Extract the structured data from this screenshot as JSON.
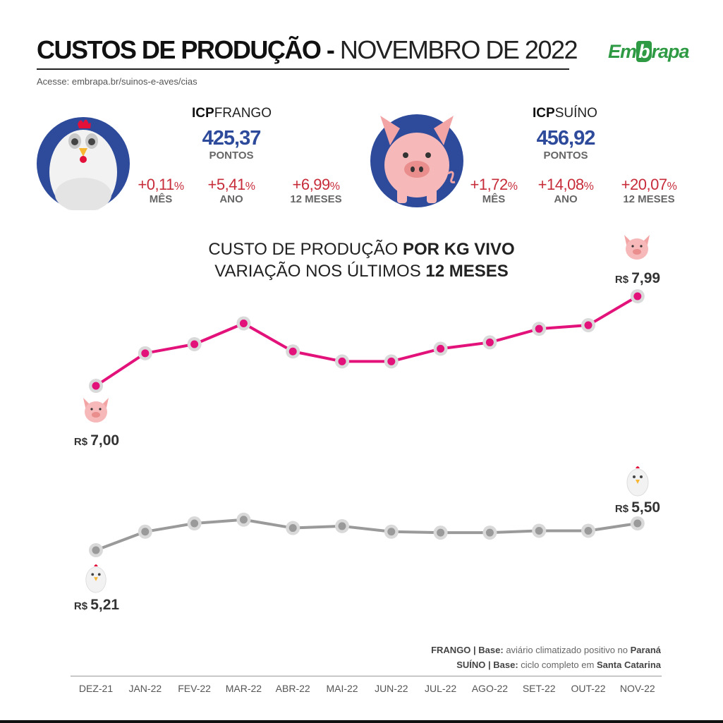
{
  "header": {
    "title_bold": "CUSTOS DE PRODUÇÃO -",
    "title_light": "NOVEMBRO DE 2022",
    "access": "Acesse: embrapa.br/suinos-e-aves/cias",
    "logo": {
      "part1": "Em",
      "part2": "b",
      "part3": "rapa"
    }
  },
  "colors": {
    "pig_line": "#e3117a",
    "chicken_line": "#9a9a9a",
    "icp_blue": "#2d4a9b",
    "pct_red": "#c72c3a"
  },
  "icp": {
    "frango": {
      "label_bold": "ICP",
      "label": "FRANGO",
      "icon": "chicken-icon",
      "value": "425,37",
      "unit": "PONTOS",
      "changes": [
        {
          "value": "+0,11",
          "sym": "%",
          "label": "MÊS"
        },
        {
          "value": "+5,41",
          "sym": "%",
          "label": "ANO"
        },
        {
          "value": "+6,99",
          "sym": "%",
          "label": "12 MESES"
        }
      ]
    },
    "suino": {
      "label_bold": "ICP",
      "label": "SUÍNO",
      "icon": "pig-icon",
      "value": "456,92",
      "unit": "PONTOS",
      "changes": [
        {
          "value": "+1,72",
          "sym": "%",
          "label": "MÊS"
        },
        {
          "value": "+14,08",
          "sym": "%",
          "label": "ANO"
        },
        {
          "value": "+20,07",
          "sym": "%",
          "label": "12 MESES"
        }
      ]
    }
  },
  "chart_title": {
    "line1_a": "CUSTO DE PRODUÇÃO ",
    "line1_b": "POR KG VIVO",
    "line2_a": "VARIAÇÃO NOS ÚLTIMOS ",
    "line2_b": "12 MESES"
  },
  "chart_data": {
    "type": "line",
    "x": [
      "DEZ-21",
      "JAN-22",
      "FEV-22",
      "MAR-22",
      "ABR-22",
      "MAI-22",
      "JUN-22",
      "JUL-22",
      "AGO-22",
      "SET-22",
      "OUT-22",
      "NOV-22"
    ],
    "series": [
      {
        "icon": "pig-icon",
        "color": "#e3117a",
        "values": [
          7.0,
          7.36,
          7.46,
          7.69,
          7.38,
          7.27,
          7.27,
          7.41,
          7.48,
          7.63,
          7.67,
          7.99
        ],
        "start_label": "R$ 7,00",
        "end_label": "R$ 7,99"
      },
      {
        "icon": "chicken-icon",
        "color": "#9a9a9a",
        "values": [
          5.21,
          5.41,
          5.5,
          5.54,
          5.45,
          5.47,
          5.41,
          5.4,
          5.4,
          5.42,
          5.42,
          5.5
        ],
        "start_label": "R$ 5,21",
        "end_label": "R$ 5,50"
      }
    ],
    "grid": false,
    "legend": "none"
  },
  "notes": {
    "frango": {
      "a": "FRANGO | Base:",
      "b": " aviário climatizado positivo no ",
      "c": "Paraná"
    },
    "suino": {
      "a": "SUÍNO | Base:",
      "b": " ciclo completo em ",
      "c": "Santa Catarina"
    }
  }
}
